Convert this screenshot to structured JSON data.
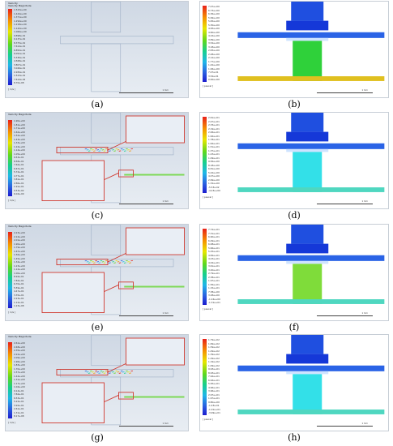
{
  "panels": [
    {
      "id": "a",
      "kind": "velocity",
      "caption": "(a)",
      "title": "Velocity",
      "header": "Velocity Magnitude",
      "unit": "[ m/s ]",
      "scale_label": "1 mm",
      "ticks": [
        "1.523e+00",
        "1.444e+00",
        "1.371e+00",
        "1.294e+00",
        "1.218e+00",
        "1.142e+00",
        "1.066e+00",
        "9.898e-01",
        "9.137e-01",
        "8.375e-01",
        "7.614e-01",
        "6.852e-01",
        "6.091e-01",
        "5.330e-01",
        "4.568e-01",
        "3.807e-01",
        "3.046e-01",
        "2.284e-01",
        "1.523e-01",
        "7.614e-02",
        "8.70e-08"
      ]
    },
    {
      "id": "b",
      "kind": "pressure",
      "caption": "(b)",
      "title": "",
      "header": "",
      "unit": "[ pascal ]",
      "scale_label": "1 mm",
      "ticks": [
        "7.07e+00",
        "6.73e+00",
        "6.36e+00",
        "5.99e+00",
        "5.65e+00",
        "5.30e+00",
        "4.95e+00",
        "4.60e+00",
        "4.24e+00",
        "3.89e+00",
        "3.54e+00",
        "3.18e+00",
        "2.83e+00",
        "2.48e+00",
        "2.12e+00",
        "1.77e+00",
        "1.42e+00",
        "1.06e+00",
        "7.07e-01",
        "3.54e-01",
        "0.00e+00"
      ]
    },
    {
      "id": "c",
      "kind": "velocity",
      "caption": "(c)",
      "title": "",
      "header": "Velocity Magnitude",
      "unit": "[ m/s ]",
      "scale_label": "1 mm",
      "ticks": [
        "1.90e+00",
        "1.81e+00",
        "1.71e+00",
        "1.62e+00",
        "1.52e+00",
        "1.43e+00",
        "1.33e+00",
        "1.24e+00",
        "1.14e+00",
        "1.05e+00",
        "9.53e-01",
        "8.58e-01",
        "7.62e-01",
        "6.67e-01",
        "5.72e-01",
        "4.77e-01",
        "3.81e-01",
        "2.86e-01",
        "1.91e-01",
        "9.53e-02",
        "6.04e-09"
      ]
    },
    {
      "id": "d",
      "kind": "pressure",
      "caption": "(d)",
      "title": "",
      "header": "",
      "unit": "[ pascal ]",
      "scale_label": "1 mm",
      "ticks": [
        "2.61e+01",
        "2.47e+01",
        "2.33e+01",
        "2.19e+01",
        "2.06e+01",
        "1.92e+01",
        "1.78e+01",
        "1.64e+01",
        "1.51e+01",
        "1.37e+01",
        "1.23e+01",
        "1.09e+01",
        "9.56e+00",
        "8.18e+00",
        "6.81e+00",
        "5.44e+00",
        "4.07e+00",
        "2.69e+00",
        "1.32e+00",
        "-5.53e-02",
        "-4.23e+00"
      ]
    },
    {
      "id": "e",
      "kind": "velocity",
      "caption": "(e)",
      "title": "",
      "header": "Velocity Magnitude",
      "unit": "[ m/s ]",
      "scale_label": "1 mm",
      "ticks": [
        "2.23e+00",
        "2.12e+00",
        "2.01e+00",
        "1.90e+00",
        "1.79e+00",
        "1.67e+00",
        "1.56e+00",
        "1.45e+00",
        "1.34e+00",
        "1.23e+00",
        "1.12e+00",
        "1.00e+00",
        "8.94e-01",
        "7.82e-01",
        "6.70e-01",
        "5.59e-01",
        "4.47e-01",
        "3.35e-01",
        "2.23e-01",
        "1.12e-01",
        "1.23e-08"
      ]
    },
    {
      "id": "f",
      "kind": "pressure",
      "caption": "(f)",
      "title": "",
      "header": "",
      "unit": "[ pascal ]",
      "scale_label": "1 mm",
      "ticks": [
        "7.72e+01",
        "7.31e+01",
        "6.90e+01",
        "6.49e+01",
        "6.08e+01",
        "5.66e+01",
        "5.25e+01",
        "4.84e+01",
        "4.43e+01",
        "4.02e+01",
        "3.61e+01",
        "3.20e+01",
        "2.79e+01",
        "2.38e+01",
        "1.97e+01",
        "1.56e+01",
        "1.15e+01",
        "7.38e+00",
        "3.28e+00",
        "-1.24e+00",
        "-1.31e+01"
      ]
    },
    {
      "id": "g",
      "kind": "velocity",
      "caption": "(g)",
      "title": "",
      "header": "Velocity Magnitude",
      "unit": "[ m/s ]",
      "scale_label": "1 mm",
      "ticks": [
        "2.61e+00",
        "2.48e+00",
        "2.35e+00",
        "2.22e+00",
        "2.09e+00",
        "1.96e+00",
        "1.83e+00",
        "1.70e+00",
        "1.57e+00",
        "1.44e+00",
        "1.31e+00",
        "1.17e+00",
        "1.04e+00",
        "9.14e-01",
        "7.84e-01",
        "6.53e-01",
        "5.22e-01",
        "3.92e-01",
        "2.61e-01",
        "1.31e-01",
        "8.17e-08"
      ]
    },
    {
      "id": "h",
      "kind": "pressure",
      "caption": "(h)",
      "title": "",
      "header": "",
      "unit": "[ pascal ]",
      "scale_label": "1 mm",
      "ticks": [
        "1.79e+02",
        "1.69e+02",
        "1.59e+02",
        "1.49e+02",
        "1.39e+02",
        "1.29e+02",
        "1.19e+02",
        "1.09e+02",
        "9.93e+01",
        "8.93e+01",
        "7.94e+01",
        "6.94e+01",
        "5.95e+01",
        "4.96e+01",
        "3.96e+01",
        "2.97e+01",
        "1.97e+01",
        "9.80e+00",
        "-1.43e-01",
        "-1.01e+01",
        "-3.99e+01"
      ]
    }
  ],
  "colors": {
    "body": "#1f4fe0",
    "neck": "#1538d8",
    "film": "#cfe3ff",
    "plate": "#2a63e6",
    "cyan": "#33e0e8",
    "green": "#2fd13a",
    "frame": "#d0392f"
  }
}
